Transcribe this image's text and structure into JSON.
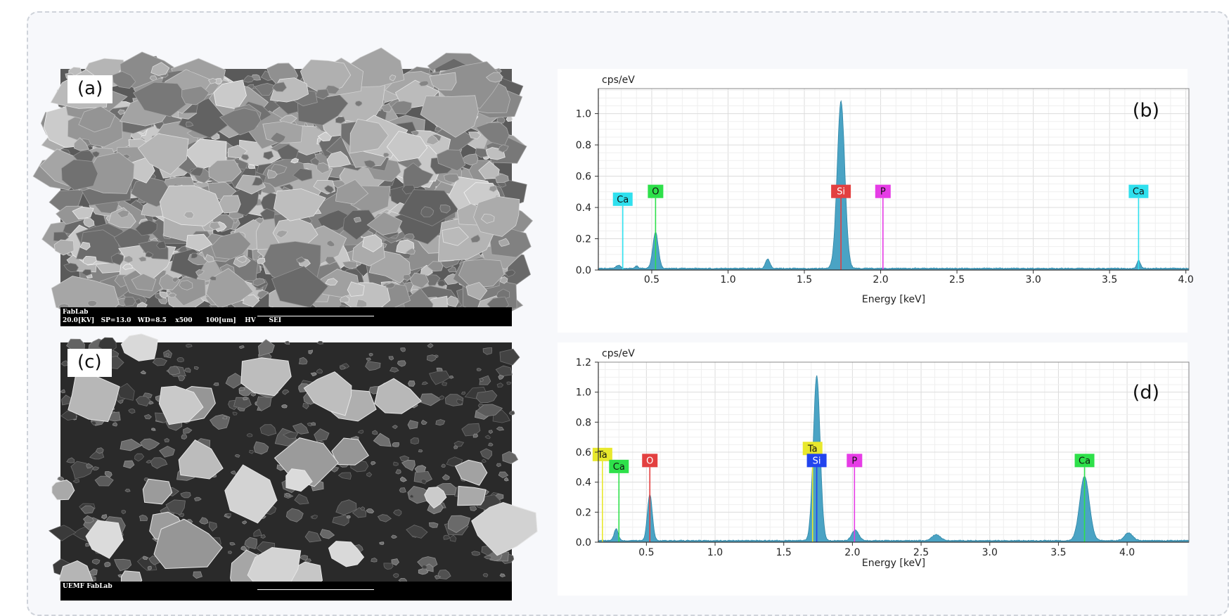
{
  "panels": {
    "a": {
      "tag": "(a)",
      "footer_line1": "FabLab",
      "footer_line2": "20.0[KV]   SP=13.0   WD=8.5    x500      100[um]    HV      SEI"
    },
    "c": {
      "tag": "(c)",
      "footer_line1": "UEMF FabLab"
    }
  },
  "chart_data": [
    {
      "type": "area",
      "panel_label": "(b)",
      "ylabel": "cps/eV",
      "xlabel": "Energy [keV]",
      "xlim": [
        0.15,
        4.02
      ],
      "ylim": [
        0,
        1.16
      ],
      "x_ticks": [
        0.5,
        1.0,
        1.5,
        2.0,
        2.5,
        3.0,
        3.5,
        4.0
      ],
      "y_ticks": [
        0.0,
        0.2,
        0.4,
        0.6,
        0.8,
        1.0
      ],
      "x_tick_labels": [
        "0.5",
        "1.0",
        "1.5",
        "2.0",
        "2.5",
        "3.0",
        "3.5",
        "4.0"
      ],
      "y_tick_labels": [
        "0.0",
        "0.2",
        "0.4",
        "0.6",
        "0.8",
        "1.0"
      ],
      "grid": true,
      "fill_color": "#4aa3c4",
      "peaks": [
        {
          "x": 0.525,
          "height": 0.23,
          "width": 0.018
        },
        {
          "x": 1.74,
          "height": 1.07,
          "width": 0.025
        },
        {
          "x": 1.26,
          "height": 0.06,
          "width": 0.015
        },
        {
          "x": 3.69,
          "height": 0.05,
          "width": 0.012
        },
        {
          "x": 0.28,
          "height": 0.02,
          "width": 0.015
        },
        {
          "x": 0.4,
          "height": 0.015,
          "width": 0.01
        }
      ],
      "element_markers": [
        {
          "label": "Ca",
          "x": 0.31,
          "line_top": 0.41,
          "color": "#2fe0ee"
        },
        {
          "label": "O",
          "x": 0.525,
          "line_top": 0.46,
          "color": "#2ee04a"
        },
        {
          "label": "Si",
          "x": 1.74,
          "line_top": 0.46,
          "color": "#e34040"
        },
        {
          "label": "P",
          "x": 2.015,
          "line_top": 0.46,
          "color": "#e63ce6"
        },
        {
          "label": "Ca",
          "x": 3.69,
          "line_top": 0.46,
          "color": "#2fe0ee"
        }
      ]
    },
    {
      "type": "area",
      "panel_label": "(d)",
      "ylabel": "cps/eV",
      "xlabel": "Energy [keV]",
      "xlim": [
        0.15,
        4.45
      ],
      "ylim": [
        0,
        1.2
      ],
      "x_ticks": [
        0.5,
        1.0,
        1.5,
        2.0,
        2.5,
        3.0,
        3.5,
        4.0
      ],
      "y_ticks": [
        0.0,
        0.2,
        0.4,
        0.6,
        0.8,
        1.0,
        1.2
      ],
      "x_tick_labels": [
        "0.5",
        "1.0",
        "1.5",
        "2.0",
        "2.5",
        "3.0",
        "3.5",
        "4.0"
      ],
      "y_tick_labels": [
        "0.0",
        "0.2",
        "0.4",
        "0.6",
        "0.8",
        "1.0",
        "1.2"
      ],
      "grid": true,
      "fill_color": "#4aa3c4",
      "peaks": [
        {
          "x": 0.525,
          "height": 0.31,
          "width": 0.018
        },
        {
          "x": 1.74,
          "height": 1.1,
          "width": 0.025
        },
        {
          "x": 3.69,
          "height": 0.43,
          "width": 0.035
        },
        {
          "x": 4.01,
          "height": 0.05,
          "width": 0.03
        },
        {
          "x": 2.61,
          "height": 0.04,
          "width": 0.03
        },
        {
          "x": 2.02,
          "height": 0.07,
          "width": 0.025
        },
        {
          "x": 0.28,
          "height": 0.08,
          "width": 0.015
        }
      ],
      "element_markers": [
        {
          "label": "Ta",
          "x": 0.18,
          "line_top": 0.54,
          "color": "#e8e82c"
        },
        {
          "label": "Ca",
          "x": 0.3,
          "line_top": 0.46,
          "color": "#2ee04a"
        },
        {
          "label": "O",
          "x": 0.525,
          "line_top": 0.5,
          "color": "#e34040"
        },
        {
          "label": "Ta",
          "x": 1.71,
          "line_top": 0.58,
          "color": "#e8e82c"
        },
        {
          "label": "Si",
          "x": 1.74,
          "line_top": 0.5,
          "color": "#2244ee"
        },
        {
          "label": "P",
          "x": 2.015,
          "line_top": 0.5,
          "color": "#e63ce6"
        },
        {
          "label": "Ca",
          "x": 3.69,
          "line_top": 0.5,
          "color": "#2ee04a"
        }
      ]
    }
  ]
}
